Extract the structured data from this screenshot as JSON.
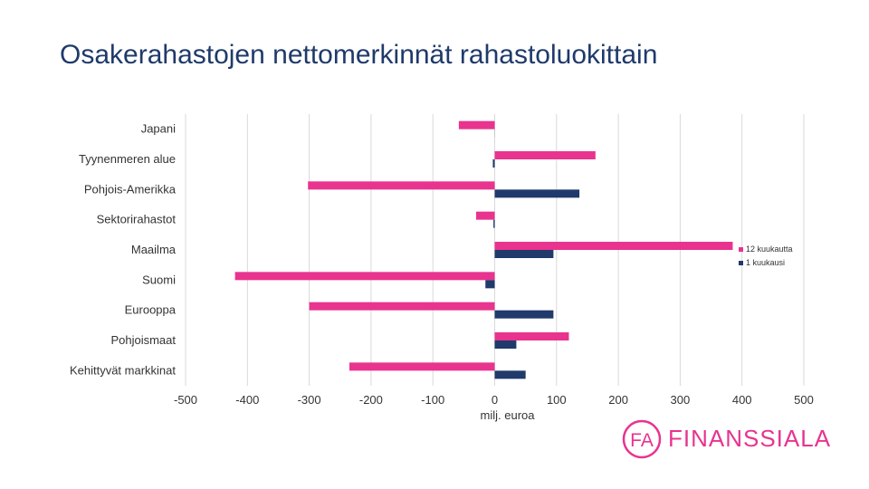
{
  "title": "Osakerahastojen nettomerkinnät rahastoluokittain",
  "brand": {
    "name": "FINANSSIALA",
    "mark": "FA",
    "color": "#e8348f"
  },
  "chart_data": {
    "type": "bar",
    "orientation": "horizontal",
    "categories": [
      "Japani",
      "Tyynenmeren alue",
      "Pohjois-Amerikka",
      "Sektorirahastot",
      "Maailma",
      "Suomi",
      "Eurooppa",
      "Pohjoismaat",
      "Kehittyvät markkinat"
    ],
    "series": [
      {
        "name": "12 kuukautta",
        "color": "#e8348f",
        "values": [
          -58,
          163,
          -302,
          -30,
          385,
          -420,
          -300,
          120,
          -235
        ]
      },
      {
        "name": "1 kuukausi",
        "color": "#1f3a6b",
        "values": [
          0,
          -3,
          137,
          -2,
          95,
          -15,
          95,
          35,
          50
        ]
      }
    ],
    "xlim": [
      -500,
      500
    ],
    "xticks": [
      -500,
      -400,
      -300,
      -200,
      -100,
      0,
      100,
      200,
      300,
      400,
      500
    ],
    "xlabel": "milj. euroa",
    "ylabel": "",
    "grid": true,
    "legend": "right"
  }
}
